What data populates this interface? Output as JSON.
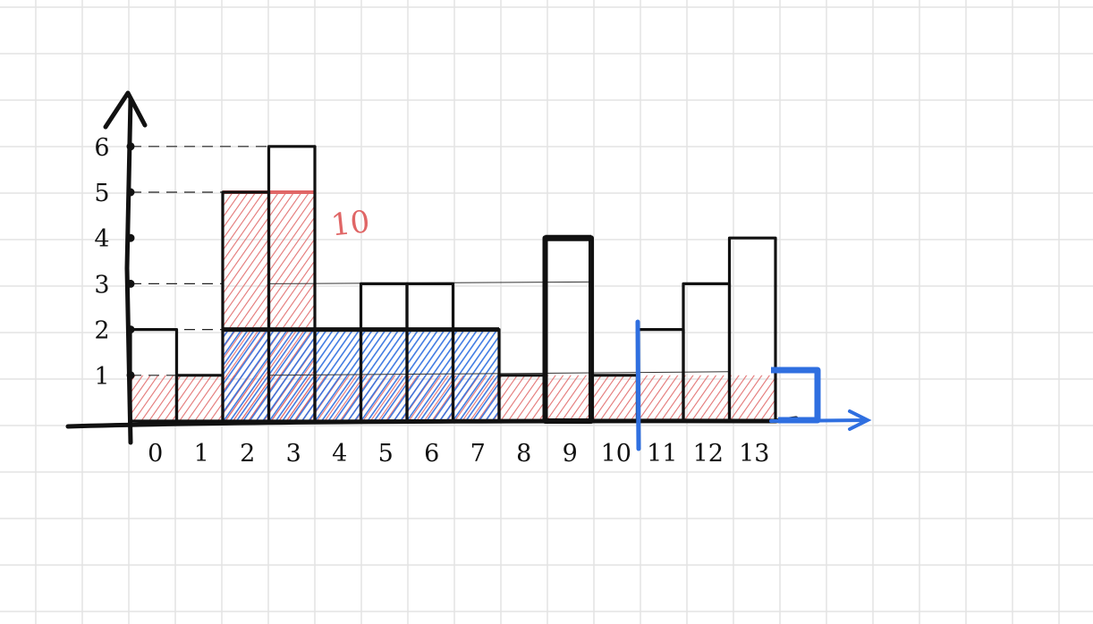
{
  "colors": {
    "grid": "#e3e3e3",
    "ink": "#111111",
    "red_fill": "#e06666",
    "blue_fill": "#2f6fe0",
    "blue_line": "#2f6fe0"
  },
  "chart_data": {
    "type": "bar",
    "categories": [
      "0",
      "1",
      "2",
      "3",
      "4",
      "5",
      "6",
      "7",
      "8",
      "9",
      "10",
      "11",
      "12",
      "13"
    ],
    "values": [
      2,
      1,
      5,
      6,
      2,
      3,
      3,
      2,
      1,
      4,
      1,
      2,
      3,
      4
    ],
    "y_ticks": [
      "1",
      "2",
      "3",
      "4",
      "5",
      "6"
    ],
    "ylim": [
      0,
      6
    ],
    "annotation": "10",
    "red_hatched": [
      {
        "from": 0,
        "to": 14,
        "height": 1
      },
      {
        "from": 2,
        "to": 4,
        "height": 5
      }
    ],
    "blue_hatched": [
      {
        "from": 2,
        "to": 8,
        "height": 2
      }
    ],
    "grid": true
  }
}
